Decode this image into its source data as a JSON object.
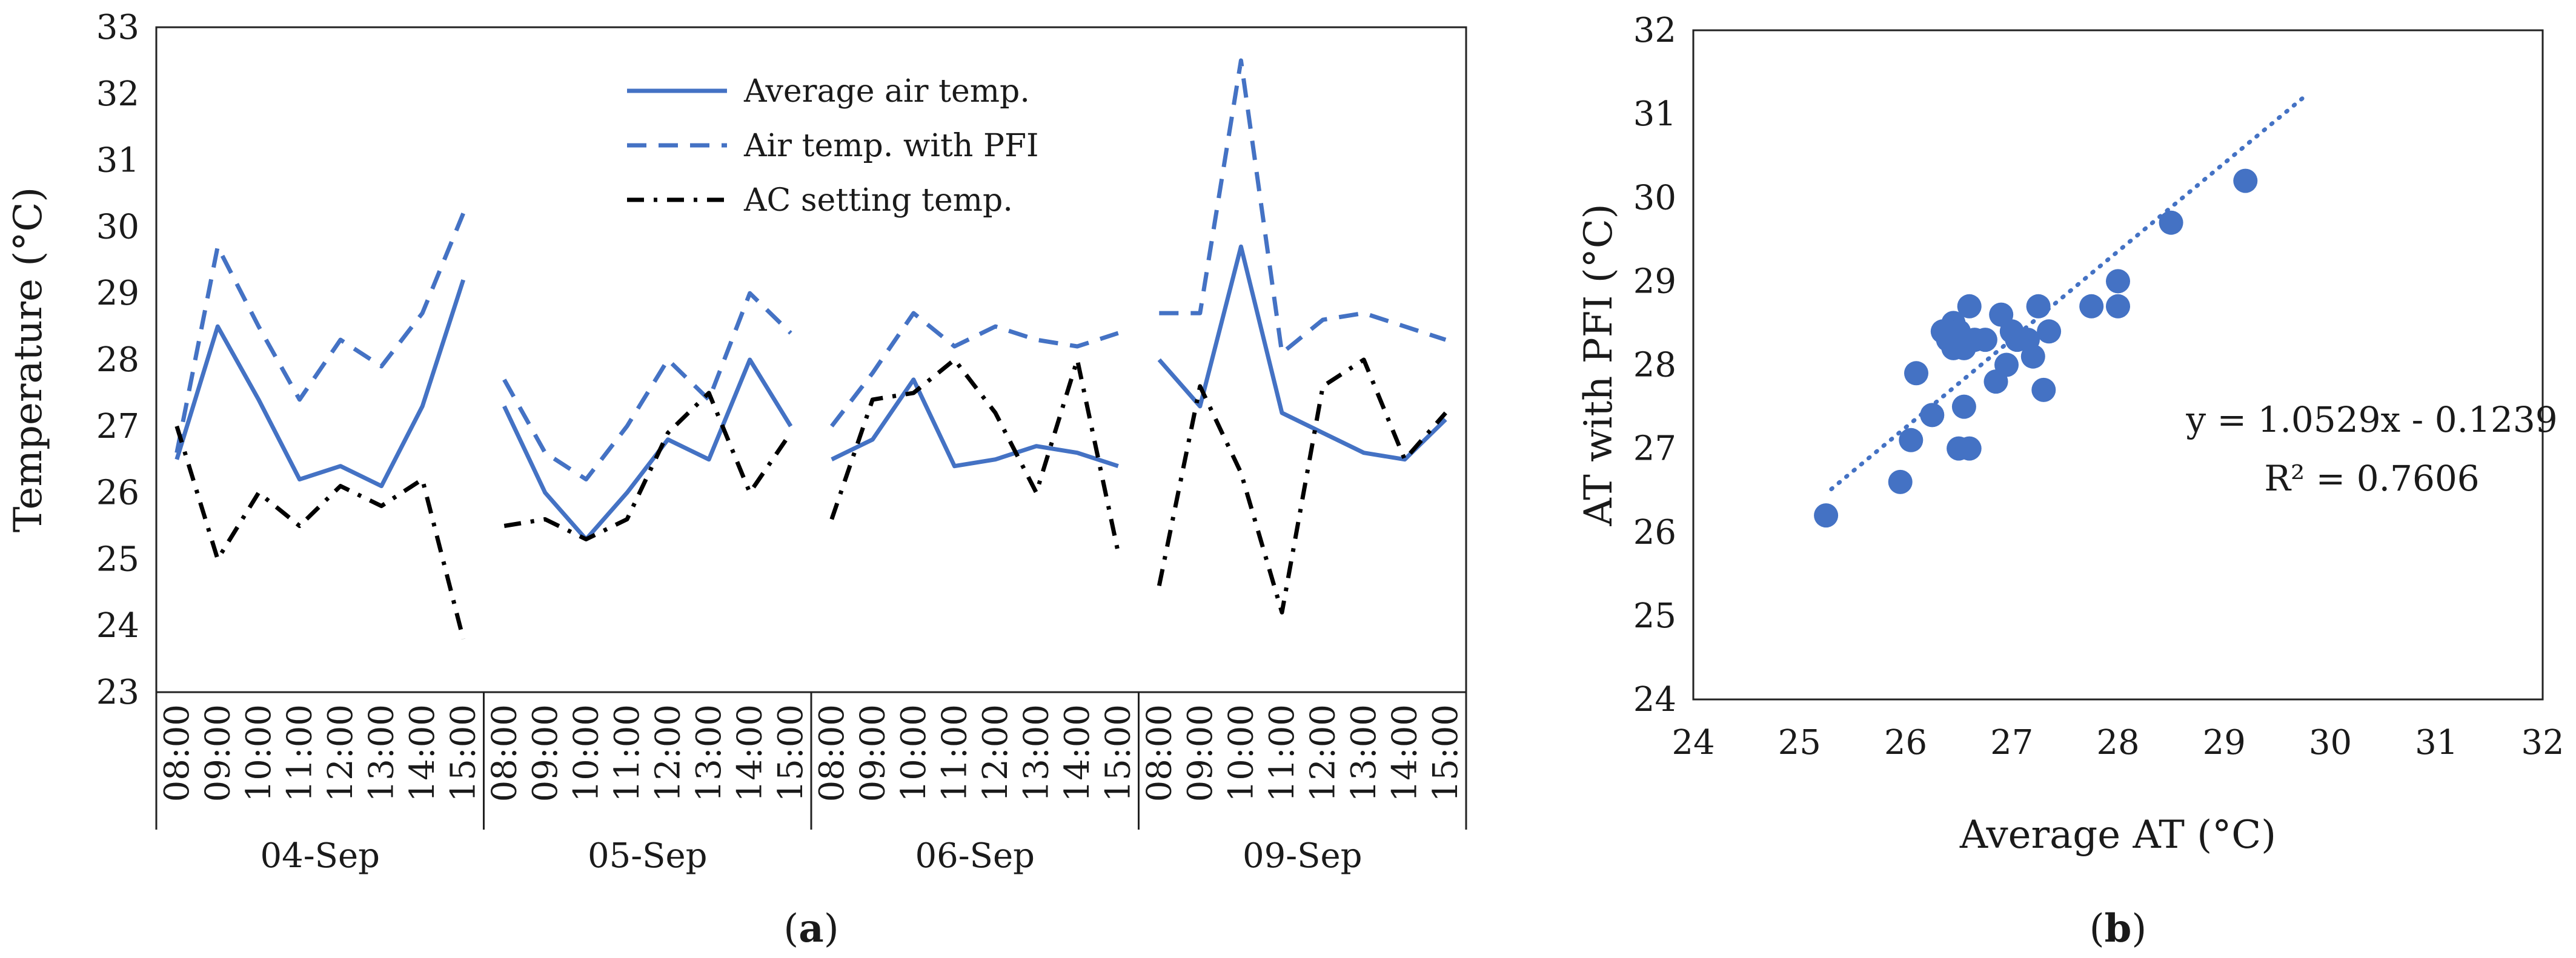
{
  "colors": {
    "blue": "#4472c4",
    "black": "#000000",
    "axis": "#222222"
  },
  "chart_data": [
    {
      "type": "line",
      "panel_label": "a",
      "ylabel": "Temperature (°C)",
      "xlabel": "",
      "ylim": [
        23,
        33
      ],
      "yticks": [
        "23",
        "24",
        "25",
        "26",
        "27",
        "28",
        "29",
        "30",
        "31",
        "32",
        "33"
      ],
      "grid": false,
      "legend_position": "top-center",
      "groups": [
        {
          "label": "04-Sep",
          "hours": [
            "08:00",
            "09:00",
            "10:00",
            "11:00",
            "12:00",
            "13:00",
            "14:00",
            "15:00"
          ]
        },
        {
          "label": "05-Sep",
          "hours": [
            "08:00",
            "09:00",
            "10:00",
            "11:00",
            "12:00",
            "13:00",
            "14:00",
            "15:00"
          ]
        },
        {
          "label": "06-Sep",
          "hours": [
            "08:00",
            "09:00",
            "10:00",
            "11:00",
            "12:00",
            "13:00",
            "14:00",
            "15:00"
          ]
        },
        {
          "label": "09-Sep",
          "hours": [
            "08:00",
            "09:00",
            "10:00",
            "11:00",
            "12:00",
            "13:00",
            "14:00",
            "15:00"
          ]
        }
      ],
      "series": [
        {
          "name": "Average air temp.",
          "style": "solid",
          "color": "#4472c4",
          "values": [
            [
              26.5,
              28.5,
              27.4,
              26.2,
              26.4,
              26.1,
              27.3,
              29.2
            ],
            [
              27.3,
              26.0,
              25.3,
              26.0,
              26.8,
              26.5,
              28.0,
              27.0
            ],
            [
              26.5,
              26.8,
              27.7,
              26.4,
              26.5,
              26.7,
              26.6,
              26.4
            ],
            [
              28.0,
              27.3,
              29.7,
              27.2,
              26.9,
              26.6,
              26.5,
              27.1
            ]
          ]
        },
        {
          "name": "Air temp. with PFI",
          "style": "dashed",
          "color": "#4472c4",
          "values": [
            [
              26.6,
              29.7,
              28.5,
              27.4,
              28.3,
              27.9,
              28.7,
              30.2
            ],
            [
              27.7,
              26.6,
              26.2,
              27.0,
              28.0,
              27.4,
              29.0,
              28.4
            ],
            [
              27.0,
              27.8,
              28.7,
              28.2,
              28.5,
              28.3,
              28.2,
              28.4
            ],
            [
              28.7,
              28.7,
              32.5,
              28.1,
              28.6,
              28.7,
              28.5,
              28.3
            ]
          ]
        },
        {
          "name": "AC setting temp.",
          "style": "dash-dot",
          "color": "#000000",
          "values": [
            [
              27.0,
              25.0,
              26.0,
              25.5,
              26.1,
              25.8,
              26.2,
              23.8
            ],
            [
              25.5,
              25.6,
              25.3,
              25.6,
              26.9,
              27.5,
              26.0,
              26.9
            ],
            [
              25.6,
              27.4,
              27.5,
              28.0,
              27.2,
              26.0,
              28.0,
              25.1
            ],
            [
              24.6,
              27.6,
              26.3,
              24.2,
              27.6,
              28.0,
              26.5,
              27.2
            ]
          ]
        }
      ]
    },
    {
      "type": "scatter",
      "panel_label": "b",
      "xlabel": "Average AT (°C)",
      "ylabel": "AT with PFI (°C)",
      "xlim": [
        24,
        32
      ],
      "ylim": [
        24,
        32
      ],
      "xticks": [
        "24",
        "25",
        "26",
        "27",
        "28",
        "29",
        "30",
        "31",
        "32"
      ],
      "yticks": [
        "24",
        "25",
        "26",
        "27",
        "28",
        "29",
        "30",
        "31",
        "32"
      ],
      "trendline": {
        "slope": 1.0529,
        "intercept": -0.1239,
        "x_range": [
          25.3,
          29.75
        ],
        "style": "dotted"
      },
      "equation": "y = 1.0529x - 0.1239",
      "r_squared": "R² = 0.7606",
      "points": [
        [
          25.25,
          26.2
        ],
        [
          25.95,
          26.6
        ],
        [
          26.05,
          27.1
        ],
        [
          26.1,
          27.9
        ],
        [
          26.25,
          27.4
        ],
        [
          26.35,
          28.4
        ],
        [
          26.4,
          28.3
        ],
        [
          26.45,
          28.5
        ],
        [
          26.45,
          28.2
        ],
        [
          26.5,
          28.4
        ],
        [
          26.5,
          27.0
        ],
        [
          26.55,
          27.5
        ],
        [
          26.55,
          28.2
        ],
        [
          26.6,
          28.7
        ],
        [
          26.6,
          27.0
        ],
        [
          26.65,
          28.3
        ],
        [
          26.75,
          28.3
        ],
        [
          26.85,
          27.8
        ],
        [
          26.9,
          28.6
        ],
        [
          26.95,
          28.0
        ],
        [
          27.0,
          28.4
        ],
        [
          27.05,
          28.3
        ],
        [
          27.15,
          28.3
        ],
        [
          27.2,
          28.1
        ],
        [
          27.25,
          28.7
        ],
        [
          27.3,
          27.7
        ],
        [
          27.35,
          28.4
        ],
        [
          27.75,
          28.7
        ],
        [
          28.0,
          28.7
        ],
        [
          28.0,
          29.0
        ],
        [
          28.5,
          29.7
        ],
        [
          29.2,
          30.2
        ]
      ]
    }
  ]
}
